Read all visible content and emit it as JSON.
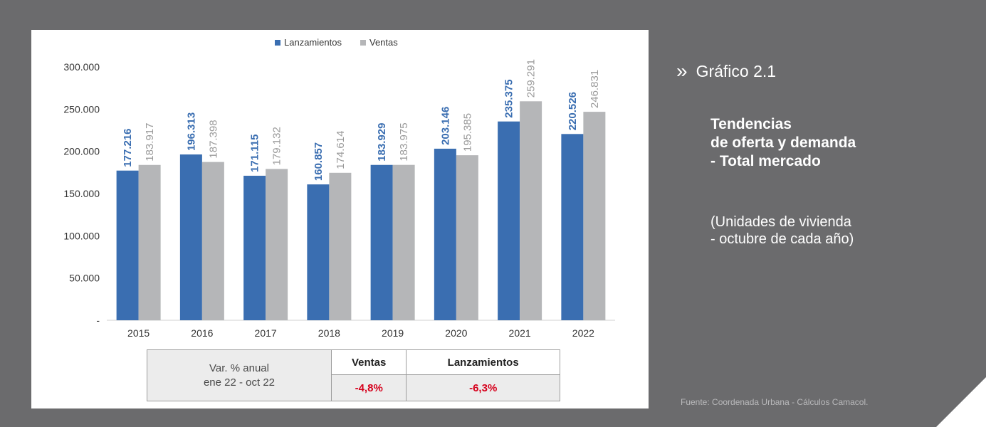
{
  "colors": {
    "lanzamientos": "#3a6eb1",
    "ventas": "#b5b6b8",
    "background": "#6b6b6d",
    "negative": "#d6001c"
  },
  "chart_data": {
    "type": "bar",
    "categories": [
      "2015",
      "2016",
      "2017",
      "2018",
      "2019",
      "2020",
      "2021",
      "2022"
    ],
    "series": [
      {
        "name": "Lanzamientos",
        "values": [
          177216,
          196313,
          171115,
          160857,
          183929,
          203146,
          235375,
          220526
        ],
        "labels": [
          "177.216",
          "196.313",
          "171.115",
          "160.857",
          "183.929",
          "203.146",
          "235.375",
          "220.526"
        ]
      },
      {
        "name": "Ventas",
        "values": [
          183917,
          187398,
          179132,
          174614,
          183975,
          195385,
          259291,
          246831
        ],
        "labels": [
          "183.917",
          "187.398",
          "179.132",
          "174.614",
          "183.975",
          "195.385",
          "259.291",
          "246.831"
        ]
      }
    ],
    "ylim": [
      0,
      300000
    ],
    "yticks": [
      "-",
      "50.000",
      "100.000",
      "150.000",
      "200.000",
      "250.000",
      "300.000"
    ],
    "legend": [
      "Lanzamientos",
      "Ventas"
    ],
    "legend_position": "top-center",
    "grid": false
  },
  "table": {
    "row_label_line1": "Var. % anual",
    "row_label_line2": "ene 22 - oct 22",
    "col_ventas": "Ventas",
    "col_lanzamientos": "Lanzamientos",
    "val_ventas": "-4,8%",
    "val_lanzamientos": "-6,3%"
  },
  "side": {
    "chevron": "»",
    "heading": "Gráfico 2.1",
    "title_line1": "Tendencias",
    "title_line2": "de oferta y demanda",
    "title_line3": "- Total mercado",
    "sub_line1": "(Unidades de vivienda",
    "sub_line2": "- octubre de cada año)"
  },
  "source": "Fuente: Coordenada Urbana - Cálculos Camacol."
}
